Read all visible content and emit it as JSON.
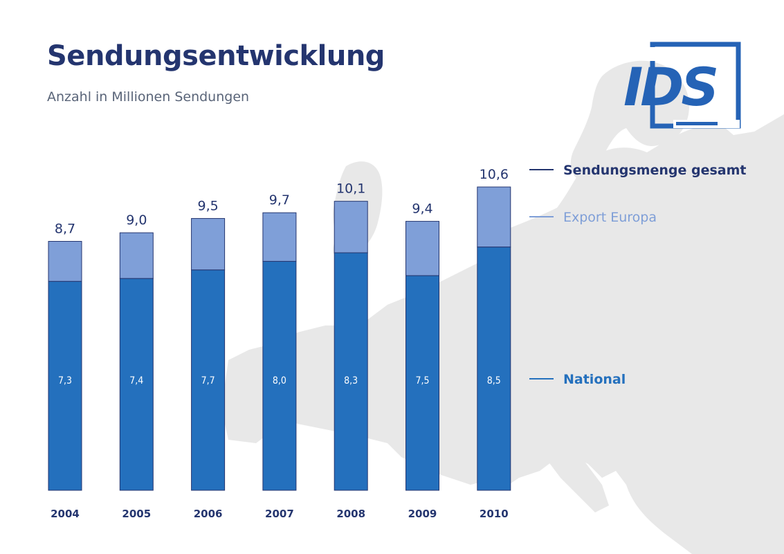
{
  "header": {
    "title": "Sendungsentwicklung",
    "subtitle": "Anzahl in Millionen Sendungen"
  },
  "logo": {
    "text": "IDS",
    "color": "#2563b6"
  },
  "colors": {
    "national": "#2470bd",
    "export": "#7f9fd8",
    "bar_outline": "#24356f",
    "total_text": "#24356f",
    "legend_total": "#24356f",
    "legend_export": "#7e9ed7",
    "legend_national": "#2470bd",
    "map": "#e8e8e8"
  },
  "chart_data": {
    "type": "bar",
    "stacked": true,
    "categories": [
      "2004",
      "2005",
      "2006",
      "2007",
      "2008",
      "2009",
      "2010"
    ],
    "series": [
      {
        "name": "National",
        "values": [
          7.3,
          7.4,
          7.7,
          8.0,
          8.3,
          7.5,
          8.5
        ],
        "labels": [
          "7,3",
          "7,4",
          "7,7",
          "8,0",
          "8,3",
          "7,5",
          "8,5"
        ]
      },
      {
        "name": "Export Europa",
        "values": [
          1.4,
          1.6,
          1.8,
          1.7,
          1.8,
          1.9,
          2.1
        ]
      }
    ],
    "totals": {
      "name": "Sendungsmenge gesamt",
      "values": [
        8.7,
        9.0,
        9.5,
        9.7,
        10.1,
        9.4,
        10.6
      ],
      "labels": [
        "8,7",
        "9,0",
        "9,5",
        "9,7",
        "10,1",
        "9,4",
        "10,6"
      ]
    },
    "title": "Sendungsentwicklung",
    "subtitle": "Anzahl in Millionen Sendungen",
    "xlabel": "",
    "ylabel": "",
    "ylim": [
      0,
      10.6
    ],
    "grid": false,
    "legend_placement": "right"
  }
}
